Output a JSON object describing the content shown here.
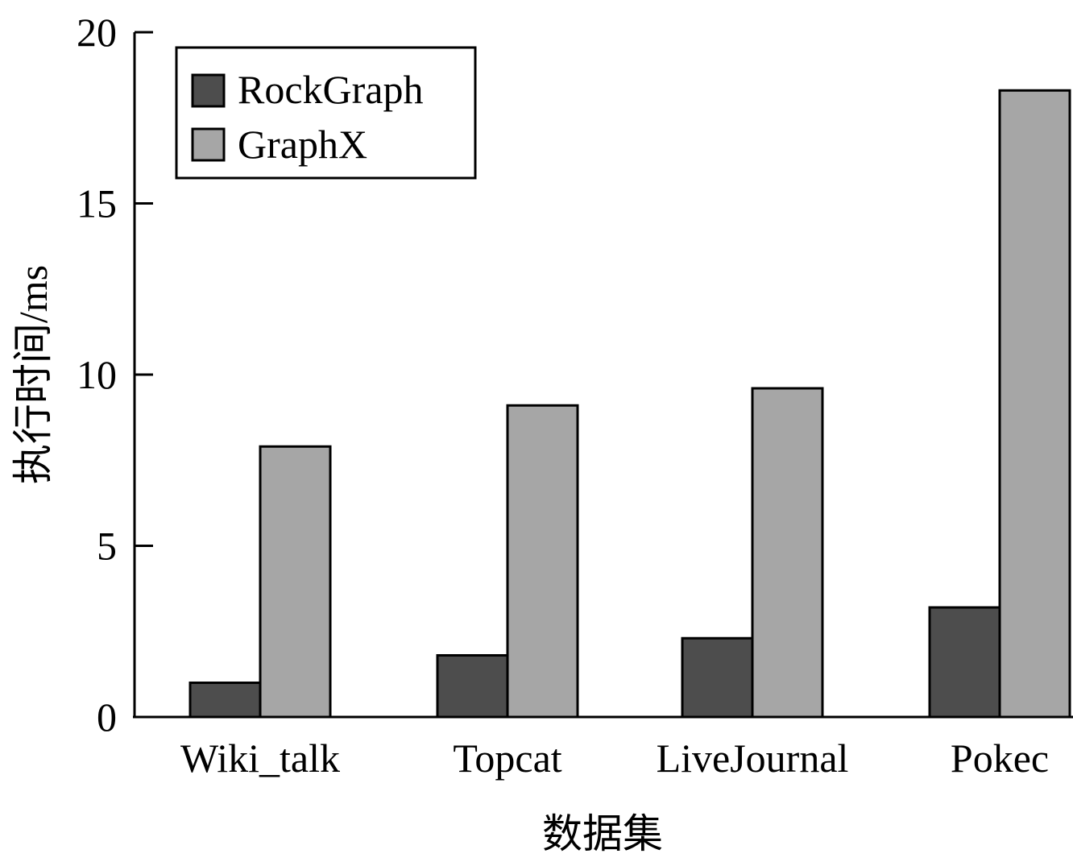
{
  "chart_data": {
    "type": "bar",
    "title": "",
    "xlabel": "数据集",
    "ylabel": "执行时间/ms",
    "categories": [
      "Wiki_talk",
      "Topcat",
      "LiveJournal",
      "Pokec"
    ],
    "series": [
      {
        "name": "RockGraph",
        "color": "#4d4d4d",
        "values": [
          1.0,
          1.8,
          2.3,
          3.2
        ]
      },
      {
        "name": "GraphX",
        "color": "#a6a6a6",
        "values": [
          7.9,
          9.1,
          9.6,
          18.3
        ]
      }
    ],
    "ylim": [
      0,
      20
    ],
    "yticks": [
      0,
      5,
      10,
      15,
      20
    ],
    "ytick_labels": [
      "0",
      "5",
      "10",
      "15",
      "20"
    ],
    "grid": false,
    "legend_position": "top-left"
  }
}
